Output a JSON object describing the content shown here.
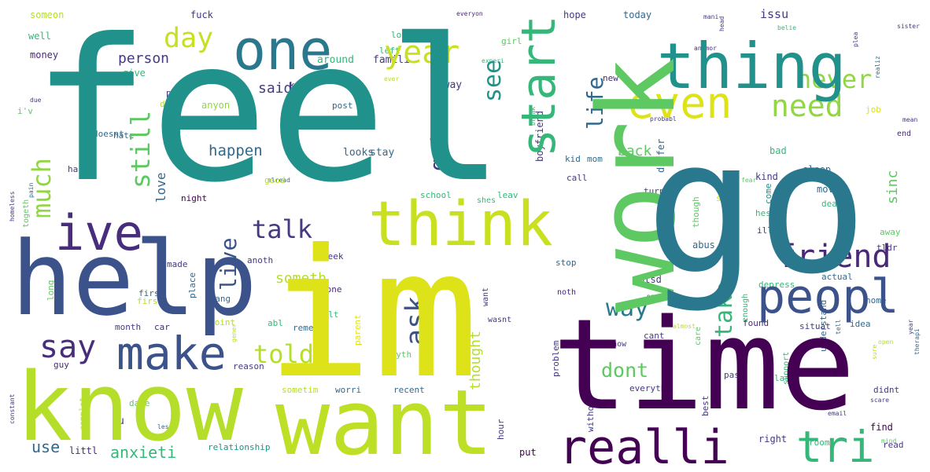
{
  "words": [
    {
      "text": "feel",
      "color": "#21918c"
    },
    {
      "text": "go",
      "color": "#2a788e"
    },
    {
      "text": "im",
      "color": "#dde318"
    },
    {
      "text": "time",
      "color": "#440154"
    },
    {
      "text": "work",
      "color": "#5ec962"
    },
    {
      "text": "help",
      "color": "#3b528b"
    },
    {
      "text": "know",
      "color": "#b5de2b"
    },
    {
      "text": "want",
      "color": "#bddf26"
    },
    {
      "text": "one",
      "color": "#2a788e"
    },
    {
      "text": "thing",
      "color": "#21918c"
    },
    {
      "text": "think",
      "color": "#c8e020"
    },
    {
      "text": "ive",
      "color": "#472d7b"
    },
    {
      "text": "realli",
      "color": "#440154"
    },
    {
      "text": "peopl",
      "color": "#3b528b"
    },
    {
      "text": "make",
      "color": "#3b528b"
    },
    {
      "text": "even",
      "color": "#dde318"
    },
    {
      "text": "start",
      "color": "#35b779"
    },
    {
      "text": "tri",
      "color": "#35b779"
    },
    {
      "text": "friend",
      "color": "#482878"
    },
    {
      "text": "say",
      "color": "#472d7b"
    },
    {
      "text": "ask",
      "color": "#3b528b"
    },
    {
      "text": "year",
      "color": "#c8e020"
    },
    {
      "text": "need",
      "color": "#90d743"
    },
    {
      "text": "day",
      "color": "#c8e020"
    },
    {
      "text": "never",
      "color": "#90d743"
    },
    {
      "text": "talk",
      "color": "#443983"
    },
    {
      "text": "still",
      "color": "#5ec962"
    },
    {
      "text": "much",
      "color": "#90d743"
    },
    {
      "text": "told",
      "color": "#b5de2b"
    },
    {
      "text": "live",
      "color": "#3b528b"
    },
    {
      "text": "got",
      "color": "#443983"
    },
    {
      "text": "life",
      "color": "#31688e"
    },
    {
      "text": "see",
      "color": "#21918c"
    },
    {
      "text": "way",
      "color": "#2a788e"
    },
    {
      "text": "take",
      "color": "#35b779"
    },
    {
      "text": "dont",
      "color": "#5ec962"
    },
    {
      "text": "tell",
      "color": "#7ad151"
    },
    {
      "text": "anxieti",
      "color": "#35b779"
    },
    {
      "text": "happen",
      "color": "#31688e"
    },
    {
      "text": "someth",
      "color": "#b5de2b"
    },
    {
      "text": "back",
      "color": "#5ec962"
    },
    {
      "text": "said",
      "color": "#443983"
    },
    {
      "text": "person",
      "color": "#443983"
    },
    {
      "text": "love",
      "color": "#31688e"
    },
    {
      "text": "sinc",
      "color": "#5ec962"
    },
    {
      "text": "thought",
      "color": "#b5de2b"
    },
    {
      "text": "use",
      "color": "#31688e"
    },
    {
      "text": "issu",
      "color": "#443983"
    },
    {
      "text": "fuck",
      "color": "#443983"
    },
    {
      "text": "someon",
      "color": "#b5de2b"
    },
    {
      "text": "well",
      "color": "#35b779"
    },
    {
      "text": "money",
      "color": "#482878"
    },
    {
      "text": "lot",
      "color": "#35b779"
    },
    {
      "text": "left",
      "color": "#35b779"
    },
    {
      "text": "around",
      "color": "#35b779"
    },
    {
      "text": "famili",
      "color": "#443983"
    },
    {
      "text": "alway",
      "color": "#443983"
    },
    {
      "text": "give",
      "color": "#35b779"
    },
    {
      "text": "keep",
      "color": "#482878"
    },
    {
      "text": "anyon",
      "color": "#90d743"
    },
    {
      "text": "post",
      "color": "#31688e"
    },
    {
      "text": "looks",
      "color": "#31688e"
    },
    {
      "text": "stay",
      "color": "#31688e"
    },
    {
      "text": "hope",
      "color": "#443983"
    },
    {
      "text": "today",
      "color": "#31688e"
    },
    {
      "text": "girl",
      "color": "#5ec962"
    },
    {
      "text": "new",
      "color": "#482878"
    },
    {
      "text": "job",
      "color": "#dde318"
    },
    {
      "text": "end",
      "color": "#482878"
    },
    {
      "text": "bad",
      "color": "#35b779"
    },
    {
      "text": "kind",
      "color": "#443983"
    },
    {
      "text": "sleep",
      "color": "#31688e"
    },
    {
      "text": "move",
      "color": "#31688e"
    },
    {
      "text": "come",
      "color": "#21918c"
    },
    {
      "text": "differ",
      "color": "#31688e"
    },
    {
      "text": "boyfriend",
      "color": "#443983"
    },
    {
      "text": "kid",
      "color": "#31688e"
    },
    {
      "text": "mom",
      "color": "#31688e"
    },
    {
      "text": "school",
      "color": "#35b779"
    },
    {
      "text": "leav",
      "color": "#35b779"
    },
    {
      "text": "call",
      "color": "#443983"
    },
    {
      "text": "turn",
      "color": "#443983"
    },
    {
      "text": "seem",
      "color": "#c8e020"
    },
    {
      "text": "hes",
      "color": "#35b779"
    },
    {
      "text": "though",
      "color": "#5ec962"
    },
    {
      "text": "shes",
      "color": "#35b779"
    },
    {
      "text": "deal",
      "color": "#35b779"
    },
    {
      "text": "away",
      "color": "#5ec962"
    },
    {
      "text": "tldr",
      "color": "#443983"
    },
    {
      "text": "abus",
      "color": "#31688e"
    },
    {
      "text": "ptsd",
      "color": "#443983"
    },
    {
      "text": "actual",
      "color": "#31688e"
    },
    {
      "text": "depress",
      "color": "#35b779"
    },
    {
      "text": "stop",
      "color": "#31688e"
    },
    {
      "text": "noth",
      "color": "#482878"
    },
    {
      "text": "hard",
      "color": "#443983"
    },
    {
      "text": "dad",
      "color": "#b5de2b"
    },
    {
      "text": "doesnt",
      "color": "#31688e"
    },
    {
      "text": "hate",
      "color": "#31688e"
    },
    {
      "text": "mother",
      "color": "#443983"
    },
    {
      "text": "pay",
      "color": "#443983"
    },
    {
      "text": "good",
      "color": "#b5de2b"
    },
    {
      "text": "night",
      "color": "#440154"
    },
    {
      "text": "made",
      "color": "#443983"
    },
    {
      "text": "anoth",
      "color": "#443983"
    },
    {
      "text": "week",
      "color": "#443983"
    },
    {
      "text": "place",
      "color": "#31688e"
    },
    {
      "text": "first",
      "color": "#31688e"
    },
    {
      "text": "chang",
      "color": "#31688e"
    },
    {
      "text": "done",
      "color": "#482878"
    },
    {
      "text": "felt",
      "color": "#35b779"
    },
    {
      "text": "month",
      "color": "#443983"
    },
    {
      "text": "car",
      "color": "#482878"
    },
    {
      "text": "abl",
      "color": "#35b779"
    },
    {
      "text": "rememb",
      "color": "#31688e"
    },
    {
      "text": "point",
      "color": "#b5de2b"
    },
    {
      "text": "parent",
      "color": "#dde318"
    },
    {
      "text": "cant",
      "color": "#443983"
    },
    {
      "text": "situat",
      "color": "#443983"
    },
    {
      "text": "idea",
      "color": "#31688e"
    },
    {
      "text": "home",
      "color": "#31688e"
    },
    {
      "text": "found",
      "color": "#482878"
    },
    {
      "text": "enough",
      "color": "#35b779"
    },
    {
      "text": "care",
      "color": "#5ec962"
    },
    {
      "text": "anyth",
      "color": "#5ec962"
    },
    {
      "text": "dont know",
      "color": "#443983"
    },
    {
      "text": "reason",
      "color": "#443983"
    },
    {
      "text": "guy",
      "color": "#482878"
    },
    {
      "text": "complet",
      "color": "#b5de2b"
    },
    {
      "text": "sometim",
      "color": "#b5de2b"
    },
    {
      "text": "worri",
      "color": "#31688e"
    },
    {
      "text": "recent",
      "color": "#31688e"
    },
    {
      "text": "date",
      "color": "#5ec962"
    },
    {
      "text": "problem",
      "color": "#443983"
    },
    {
      "text": "everyth",
      "color": "#443983"
    },
    {
      "text": "without",
      "color": "#443983"
    },
    {
      "text": "past",
      "color": "#443983"
    },
    {
      "text": "last",
      "color": "#35b779"
    },
    {
      "text": "support",
      "color": "#35b779"
    },
    {
      "text": "understand",
      "color": "#31688e"
    },
    {
      "text": "didnt",
      "color": "#443983"
    },
    {
      "text": "best",
      "color": "#443983"
    },
    {
      "text": "hour",
      "color": "#443983"
    },
    {
      "text": "put",
      "color": "#440154"
    },
    {
      "text": "right",
      "color": "#443983"
    },
    {
      "text": "room",
      "color": "#35b779"
    },
    {
      "text": "find",
      "color": "#440154"
    },
    {
      "text": "read",
      "color": "#443983"
    },
    {
      "text": "relationship",
      "color": "#21918c"
    },
    {
      "text": "littl",
      "color": "#482878"
    },
    {
      "text": "u",
      "color": "#482878"
    },
    {
      "text": "i'v",
      "color": "#5ec962"
    },
    {
      "text": "ill",
      "color": "#443983"
    },
    {
      "text": "long",
      "color": "#5ec962"
    },
    {
      "text": "togeth",
      "color": "#5ec962"
    },
    {
      "text": "want",
      "color": "#443983"
    },
    {
      "text": "wasnt",
      "color": "#443983"
    },
    {
      "text": "first",
      "color": "#b5de2b"
    }
  ],
  "tiny_words": [
    {
      "text": "everyon",
      "color": "#482878"
    },
    {
      "text": "experi",
      "color": "#35b779"
    },
    {
      "text": "ever",
      "color": "#b5de2b"
    },
    {
      "text": "due",
      "color": "#443983"
    },
    {
      "text": "belie",
      "color": "#35b779"
    },
    {
      "text": "anymor",
      "color": "#482878"
    },
    {
      "text": "plea",
      "color": "#443983"
    },
    {
      "text": "realiz",
      "color": "#31688e"
    },
    {
      "text": "alread",
      "color": "#31688e"
    },
    {
      "text": "head",
      "color": "#443983"
    },
    {
      "text": "mean",
      "color": "#443983"
    },
    {
      "text": "break",
      "color": "#35b779"
    },
    {
      "text": "probabl",
      "color": "#443983"
    },
    {
      "text": "fear",
      "color": "#5ec962"
    },
    {
      "text": "homeless",
      "color": "#443983"
    },
    {
      "text": "constant",
      "color": "#443983"
    },
    {
      "text": "almost",
      "color": "#b5de2b"
    },
    {
      "text": "great",
      "color": "#b5de2b"
    },
    {
      "text": "open",
      "color": "#b5de2b"
    },
    {
      "text": "therapi",
      "color": "#31688e"
    },
    {
      "text": "mind",
      "color": "#5ec962"
    },
    {
      "text": "email",
      "color": "#443983"
    },
    {
      "text": "panic",
      "color": "#31688e"
    },
    {
      "text": "sure",
      "color": "#b5de2b"
    },
    {
      "text": "tell",
      "color": "#31688e"
    },
    {
      "text": "year",
      "color": "#443983"
    },
    {
      "text": "less",
      "color": "#31688e"
    },
    {
      "text": "gener",
      "color": "#b5de2b"
    },
    {
      "text": "scare",
      "color": "#443983"
    },
    {
      "text": "pain",
      "color": "#31688e"
    },
    {
      "text": "sister",
      "color": "#443983"
    },
    {
      "text": "mani",
      "color": "#443983"
    }
  ]
}
